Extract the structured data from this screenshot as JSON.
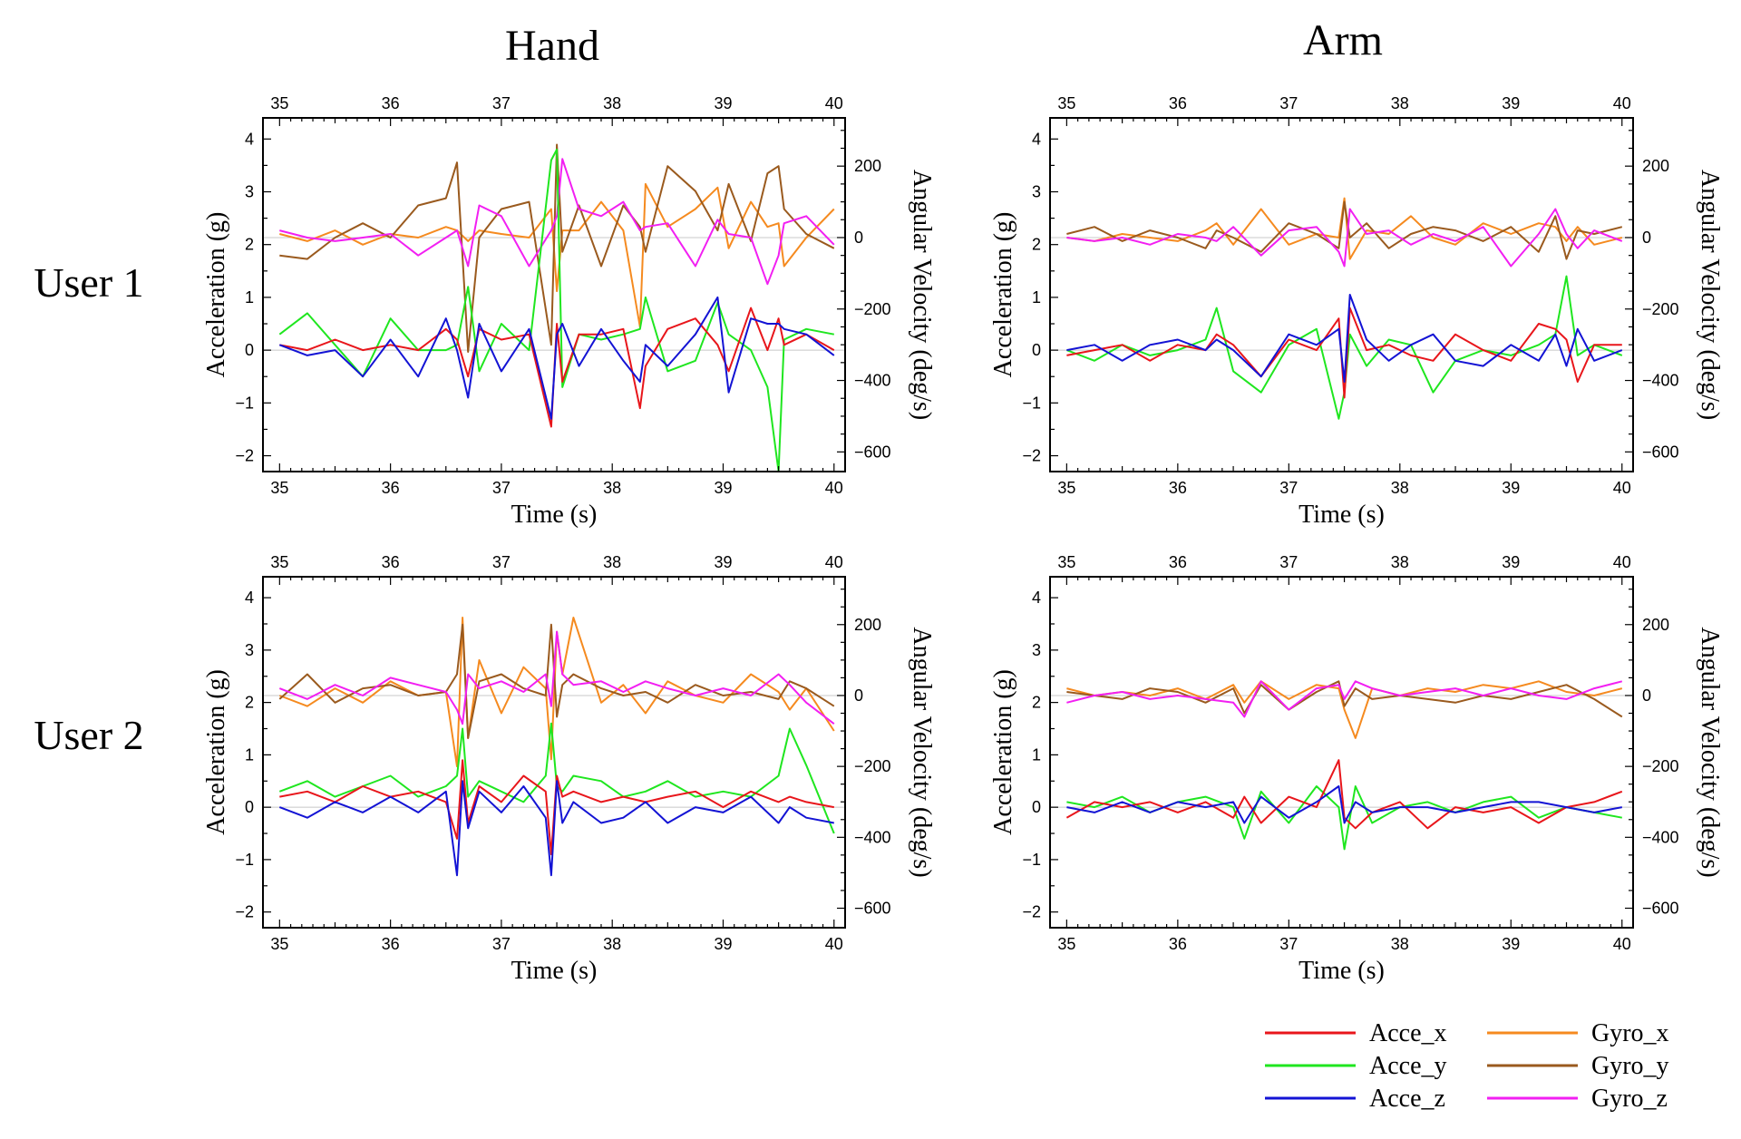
{
  "figure": {
    "column_titles": [
      "Hand",
      "Arm"
    ],
    "row_titles": [
      "User 1",
      "User 2"
    ]
  },
  "axes": {
    "xlabel": "Time (s)",
    "ylabel_left": "Acceleration (g)",
    "ylabel_right": "Angular Velocity (deg/s)",
    "xlim": [
      34.85,
      40.1
    ],
    "xticks": [
      35,
      36,
      37,
      38,
      39,
      40
    ],
    "ylim_left": [
      -2.3,
      4.4
    ],
    "yticks_left": [
      -2,
      -1,
      0,
      1,
      2,
      3,
      4
    ],
    "ylim_right": [
      -655,
      335
    ],
    "yticks_right": [
      -600,
      -400,
      -200,
      0,
      200
    ],
    "grid": false,
    "reference_lines": [
      "y_left = 0",
      "y_right = 0"
    ]
  },
  "legend": {
    "placement": "bottom-right",
    "entries": [
      {
        "name": "Acce_x",
        "color": "#e8161b"
      },
      {
        "name": "Acce_y",
        "color": "#1fe61f"
      },
      {
        "name": "Acce_z",
        "color": "#1313d4"
      },
      {
        "name": "Gyro_x",
        "color": "#f58a1f"
      },
      {
        "name": "Gyro_y",
        "color": "#9a5a1e"
      },
      {
        "name": "Gyro_z",
        "color": "#f21ff2"
      }
    ]
  },
  "chart_data": [
    {
      "type": "line",
      "panel": "User 1 - Hand",
      "x": [
        35.0,
        35.25,
        35.5,
        35.75,
        36.0,
        36.25,
        36.5,
        36.6,
        36.7,
        36.8,
        37.0,
        37.25,
        37.45,
        37.5,
        37.55,
        37.7,
        37.9,
        38.1,
        38.25,
        38.3,
        38.5,
        38.75,
        38.95,
        39.05,
        39.25,
        39.4,
        39.5,
        39.55,
        39.75,
        40.0
      ],
      "series": [
        {
          "name": "Acce_x",
          "axis": "left",
          "values": [
            0.1,
            0.0,
            0.2,
            0.0,
            0.1,
            0.0,
            0.4,
            0.2,
            -0.5,
            0.4,
            0.2,
            0.3,
            -1.45,
            0.5,
            -0.6,
            0.3,
            0.3,
            0.4,
            -1.1,
            -0.3,
            0.4,
            0.6,
            0.1,
            -0.4,
            0.8,
            0.0,
            0.6,
            0.1,
            0.3,
            0.0
          ]
        },
        {
          "name": "Acce_y",
          "axis": "left",
          "values": [
            0.3,
            0.7,
            0.1,
            -0.5,
            0.6,
            0.0,
            0.0,
            0.1,
            1.2,
            -0.4,
            0.5,
            0.0,
            3.6,
            3.8,
            -0.7,
            0.3,
            0.2,
            0.3,
            0.4,
            1.0,
            -0.4,
            -0.2,
            0.9,
            0.3,
            0.0,
            -0.7,
            -2.3,
            0.2,
            0.4,
            0.3
          ]
        },
        {
          "name": "Acce_z",
          "axis": "left",
          "values": [
            0.1,
            -0.1,
            0.0,
            -0.5,
            0.2,
            -0.5,
            0.6,
            0.0,
            -0.9,
            0.5,
            -0.4,
            0.4,
            -1.3,
            0.3,
            0.5,
            -0.3,
            0.4,
            -0.2,
            -0.6,
            0.1,
            -0.3,
            0.3,
            1.0,
            -0.8,
            0.6,
            0.5,
            0.5,
            0.4,
            0.3,
            -0.1
          ]
        },
        {
          "name": "Gyro_x",
          "axis": "right",
          "values": [
            10,
            -10,
            20,
            -20,
            10,
            0,
            30,
            20,
            -10,
            20,
            10,
            0,
            80,
            -150,
            20,
            20,
            100,
            20,
            -250,
            150,
            30,
            80,
            140,
            -30,
            100,
            30,
            40,
            -80,
            0,
            80
          ]
        },
        {
          "name": "Gyro_y",
          "axis": "right",
          "values": [
            -50,
            -60,
            0,
            40,
            0,
            90,
            110,
            210,
            -320,
            0,
            80,
            100,
            -300,
            260,
            -40,
            90,
            -80,
            90,
            30,
            -40,
            200,
            130,
            20,
            150,
            -10,
            180,
            200,
            80,
            10,
            -30
          ]
        },
        {
          "name": "Gyro_z",
          "axis": "right",
          "values": [
            20,
            0,
            -10,
            0,
            10,
            -50,
            0,
            20,
            -80,
            90,
            60,
            -80,
            20,
            60,
            220,
            80,
            60,
            100,
            20,
            30,
            40,
            -80,
            50,
            10,
            0,
            -130,
            -50,
            40,
            60,
            -20
          ]
        }
      ]
    },
    {
      "type": "line",
      "panel": "User 1 - Arm",
      "x": [
        35.0,
        35.25,
        35.5,
        35.75,
        36.0,
        36.25,
        36.35,
        36.5,
        36.75,
        37.0,
        37.25,
        37.45,
        37.5,
        37.55,
        37.7,
        37.9,
        38.1,
        38.3,
        38.5,
        38.75,
        39.0,
        39.25,
        39.4,
        39.5,
        39.6,
        39.75,
        40.0
      ],
      "series": [
        {
          "name": "Acce_x",
          "axis": "left",
          "values": [
            -0.1,
            0.0,
            0.1,
            -0.2,
            0.1,
            0.0,
            0.3,
            0.1,
            -0.5,
            0.2,
            0.0,
            0.6,
            -0.9,
            0.8,
            0.0,
            0.1,
            -0.1,
            -0.2,
            0.3,
            0.0,
            -0.2,
            0.5,
            0.4,
            0.2,
            -0.6,
            0.1,
            0.1
          ]
        },
        {
          "name": "Acce_y",
          "axis": "left",
          "values": [
            0.0,
            -0.2,
            0.1,
            -0.1,
            0.0,
            0.2,
            0.8,
            -0.4,
            -0.8,
            0.1,
            0.4,
            -1.3,
            -0.8,
            0.3,
            -0.3,
            0.2,
            0.1,
            -0.8,
            -0.2,
            0.0,
            -0.1,
            0.1,
            0.3,
            1.4,
            -0.1,
            0.1,
            -0.1
          ]
        },
        {
          "name": "Acce_z",
          "axis": "left",
          "values": [
            0.0,
            0.1,
            -0.2,
            0.1,
            0.2,
            0.0,
            0.2,
            0.0,
            -0.5,
            0.3,
            0.1,
            0.4,
            -0.6,
            1.05,
            0.2,
            -0.2,
            0.1,
            0.3,
            -0.2,
            -0.3,
            0.1,
            -0.2,
            0.3,
            -0.3,
            0.4,
            -0.2,
            0.0
          ]
        },
        {
          "name": "Gyro_x",
          "axis": "right",
          "values": [
            0,
            -10,
            10,
            0,
            -10,
            20,
            40,
            -20,
            80,
            -20,
            10,
            0,
            110,
            -60,
            20,
            10,
            60,
            0,
            -20,
            40,
            10,
            40,
            30,
            -10,
            30,
            -20,
            0
          ]
        },
        {
          "name": "Gyro_y",
          "axis": "right",
          "values": [
            10,
            30,
            -10,
            20,
            0,
            -30,
            20,
            0,
            -40,
            40,
            10,
            -30,
            100,
            0,
            40,
            -30,
            10,
            30,
            20,
            -10,
            30,
            -40,
            60,
            -60,
            20,
            10,
            30
          ]
        },
        {
          "name": "Gyro_z",
          "axis": "right",
          "values": [
            0,
            -10,
            0,
            -20,
            10,
            0,
            -10,
            30,
            -50,
            20,
            30,
            -40,
            -80,
            80,
            10,
            20,
            -20,
            10,
            -10,
            30,
            -80,
            10,
            80,
            10,
            -30,
            20,
            -10
          ]
        }
      ]
    },
    {
      "type": "line",
      "panel": "User 2 - Hand",
      "x": [
        35.0,
        35.25,
        35.5,
        35.75,
        36.0,
        36.25,
        36.5,
        36.6,
        36.65,
        36.7,
        36.8,
        37.0,
        37.2,
        37.4,
        37.45,
        37.5,
        37.55,
        37.65,
        37.9,
        38.1,
        38.3,
        38.5,
        38.75,
        39.0,
        39.25,
        39.5,
        39.6,
        39.75,
        40.0
      ],
      "series": [
        {
          "name": "Acce_x",
          "axis": "left",
          "values": [
            0.2,
            0.3,
            0.1,
            0.4,
            0.2,
            0.3,
            0.1,
            -0.6,
            0.9,
            -0.3,
            0.4,
            0.1,
            0.6,
            0.3,
            -0.9,
            0.6,
            0.2,
            0.3,
            0.1,
            0.2,
            0.1,
            0.2,
            0.3,
            0.0,
            0.3,
            0.1,
            0.2,
            0.1,
            0.0
          ]
        },
        {
          "name": "Acce_y",
          "axis": "left",
          "values": [
            0.3,
            0.5,
            0.2,
            0.4,
            0.6,
            0.2,
            0.4,
            0.6,
            1.5,
            0.2,
            0.5,
            0.3,
            0.1,
            0.6,
            1.6,
            0.4,
            0.3,
            0.6,
            0.5,
            0.2,
            0.3,
            0.5,
            0.2,
            0.3,
            0.2,
            0.6,
            1.5,
            0.8,
            -0.5
          ]
        },
        {
          "name": "Acce_z",
          "axis": "left",
          "values": [
            0.0,
            -0.2,
            0.1,
            -0.1,
            0.2,
            -0.1,
            0.3,
            -1.3,
            0.5,
            -0.4,
            0.3,
            -0.1,
            0.4,
            -0.2,
            -1.3,
            0.5,
            -0.3,
            0.1,
            -0.3,
            -0.2,
            0.1,
            -0.3,
            0.0,
            -0.1,
            0.2,
            -0.3,
            0.0,
            -0.2,
            -0.3
          ]
        },
        {
          "name": "Gyro_x",
          "axis": "right",
          "values": [
            0,
            -30,
            20,
            -20,
            40,
            0,
            10,
            -200,
            220,
            -120,
            100,
            -50,
            80,
            20,
            -180,
            180,
            60,
            220,
            -20,
            30,
            -50,
            40,
            0,
            -20,
            60,
            10,
            -40,
            20,
            -100
          ]
        },
        {
          "name": "Gyro_y",
          "axis": "right",
          "values": [
            -10,
            60,
            -20,
            20,
            30,
            0,
            10,
            60,
            200,
            -120,
            40,
            60,
            20,
            0,
            200,
            -60,
            30,
            60,
            20,
            0,
            10,
            -20,
            30,
            0,
            10,
            -10,
            40,
            20,
            -30
          ]
        },
        {
          "name": "Gyro_z",
          "axis": "right",
          "values": [
            20,
            -10,
            30,
            0,
            50,
            30,
            10,
            -40,
            -80,
            60,
            20,
            40,
            10,
            60,
            -30,
            180,
            60,
            30,
            40,
            10,
            40,
            20,
            0,
            20,
            0,
            60,
            30,
            -20,
            -80
          ]
        }
      ]
    },
    {
      "type": "line",
      "panel": "User 2 - Arm",
      "x": [
        35.0,
        35.25,
        35.5,
        35.75,
        36.0,
        36.25,
        36.5,
        36.6,
        36.75,
        37.0,
        37.25,
        37.45,
        37.5,
        37.6,
        37.75,
        38.0,
        38.25,
        38.5,
        38.75,
        39.0,
        39.25,
        39.5,
        39.75,
        40.0
      ],
      "series": [
        {
          "name": "Acce_x",
          "axis": "left",
          "values": [
            -0.2,
            0.1,
            0.0,
            0.1,
            -0.1,
            0.1,
            -0.2,
            0.2,
            -0.3,
            0.2,
            0.0,
            0.9,
            -0.2,
            -0.4,
            -0.1,
            0.1,
            -0.4,
            0.0,
            -0.1,
            0.0,
            -0.3,
            0.0,
            0.1,
            0.3
          ]
        },
        {
          "name": "Acce_y",
          "axis": "left",
          "values": [
            0.1,
            0.0,
            0.2,
            -0.1,
            0.1,
            0.2,
            0.0,
            -0.6,
            0.3,
            -0.3,
            0.4,
            0.0,
            -0.8,
            0.4,
            -0.3,
            0.0,
            0.1,
            -0.1,
            0.1,
            0.2,
            -0.2,
            0.0,
            -0.1,
            -0.2
          ]
        },
        {
          "name": "Acce_z",
          "axis": "left",
          "values": [
            0.0,
            -0.1,
            0.1,
            -0.1,
            0.1,
            0.0,
            0.1,
            -0.3,
            0.2,
            -0.2,
            0.1,
            0.4,
            -0.3,
            0.1,
            -0.1,
            0.0,
            0.0,
            -0.1,
            0.0,
            0.1,
            0.1,
            0.0,
            -0.1,
            0.0
          ]
        },
        {
          "name": "Gyro_x",
          "axis": "right",
          "values": [
            20,
            0,
            10,
            0,
            20,
            -10,
            30,
            -20,
            40,
            -10,
            30,
            20,
            -40,
            -120,
            20,
            0,
            20,
            10,
            30,
            20,
            40,
            10,
            0,
            20
          ]
        },
        {
          "name": "Gyro_y",
          "axis": "right",
          "values": [
            10,
            0,
            -10,
            20,
            10,
            -20,
            20,
            -50,
            30,
            -40,
            10,
            40,
            -30,
            20,
            -10,
            0,
            -10,
            -20,
            0,
            -10,
            10,
            30,
            -10,
            -60
          ]
        },
        {
          "name": "Gyro_z",
          "axis": "right",
          "values": [
            -20,
            0,
            10,
            -10,
            0,
            -10,
            -20,
            -60,
            40,
            -40,
            20,
            30,
            -10,
            40,
            20,
            0,
            10,
            20,
            0,
            20,
            0,
            -10,
            20,
            40
          ]
        }
      ]
    }
  ]
}
